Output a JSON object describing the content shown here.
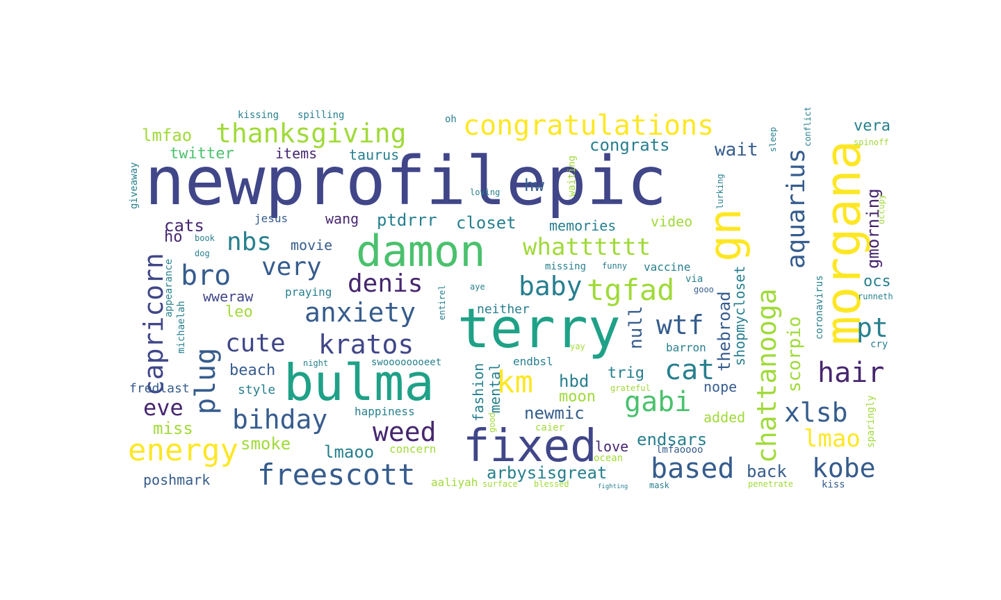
{
  "palette": {
    "purple": "#46266f",
    "indigo": "#404688",
    "blue": "#365c8d",
    "teal": "#277f8e",
    "teal2": "#1fa187",
    "green": "#4ac16d",
    "lime": "#a0da39",
    "yellow": "#fde725"
  },
  "words": [
    {
      "text": "newprofilepic",
      "color": "indigo"
    },
    {
      "text": "terry",
      "color": "teal2"
    },
    {
      "text": "bulma",
      "color": "teal2"
    },
    {
      "text": "morgana",
      "color": "yellow"
    },
    {
      "text": "damon",
      "color": "green"
    },
    {
      "text": "fixed",
      "color": "indigo"
    },
    {
      "text": "gn",
      "color": "yellow"
    },
    {
      "text": "congratulations",
      "color": "yellow"
    },
    {
      "text": "thanksgiving",
      "color": "lime"
    },
    {
      "text": "capricorn",
      "color": "indigo"
    },
    {
      "text": "anxiety",
      "color": "blue"
    },
    {
      "text": "kratos",
      "color": "indigo"
    },
    {
      "text": "chattanooga",
      "color": "lime"
    },
    {
      "text": "aquarius",
      "color": "blue"
    },
    {
      "text": "whatttttt",
      "color": "lime"
    },
    {
      "text": "km",
      "color": "yellow"
    },
    {
      "text": "tgfad",
      "color": "lime"
    },
    {
      "text": "freescott",
      "color": "blue"
    },
    {
      "text": "energy",
      "color": "yellow"
    },
    {
      "text": "bihday",
      "color": "blue"
    },
    {
      "text": "cute",
      "color": "indigo"
    },
    {
      "text": "denis",
      "color": "purple"
    },
    {
      "text": "very",
      "color": "blue"
    },
    {
      "text": "bro",
      "color": "blue"
    },
    {
      "text": "plug",
      "color": "blue"
    },
    {
      "text": "nbs",
      "color": "teal"
    },
    {
      "text": "baby",
      "color": "teal"
    },
    {
      "text": "wtf",
      "color": "blue"
    },
    {
      "text": "cat",
      "color": "teal"
    },
    {
      "text": "gabi",
      "color": "green"
    },
    {
      "text": "weed",
      "color": "purple"
    },
    {
      "text": "based",
      "color": "blue"
    },
    {
      "text": "kobe",
      "color": "blue"
    },
    {
      "text": "lmao",
      "color": "yellow"
    },
    {
      "text": "xlsb",
      "color": "blue"
    },
    {
      "text": "hair",
      "color": "purple"
    },
    {
      "text": "pt",
      "color": "teal"
    },
    {
      "text": "eve",
      "color": "purple"
    },
    {
      "text": "back",
      "color": "blue"
    },
    {
      "text": "arbysisgreat",
      "color": "teal"
    },
    {
      "text": "endsars",
      "color": "teal"
    },
    {
      "text": "smoke",
      "color": "lime"
    },
    {
      "text": "lmaoo",
      "color": "teal"
    },
    {
      "text": "poshmark",
      "color": "blue"
    },
    {
      "text": "miss",
      "color": "lime"
    },
    {
      "text": "fredlast",
      "color": "blue"
    },
    {
      "text": "style",
      "color": "teal"
    },
    {
      "text": "beach",
      "color": "blue"
    },
    {
      "text": "cats",
      "color": "purple"
    },
    {
      "text": "ho",
      "color": "purple"
    },
    {
      "text": "leo",
      "color": "lime"
    },
    {
      "text": "wweraw",
      "color": "indigo"
    },
    {
      "text": "lmfao",
      "color": "lime"
    },
    {
      "text": "twitter",
      "color": "green"
    },
    {
      "text": "items",
      "color": "purple"
    },
    {
      "text": "taurus",
      "color": "teal"
    },
    {
      "text": "congrats",
      "color": "teal"
    },
    {
      "text": "wait",
      "color": "blue"
    },
    {
      "text": "vera",
      "color": "teal"
    },
    {
      "text": "ptdrrr",
      "color": "teal"
    },
    {
      "text": "closet",
      "color": "teal"
    },
    {
      "text": "memories",
      "color": "teal"
    },
    {
      "text": "hw",
      "color": "blue"
    },
    {
      "text": "wang",
      "color": "purple"
    },
    {
      "text": "movie",
      "color": "blue"
    },
    {
      "text": "jesus",
      "color": "blue"
    },
    {
      "text": "video",
      "color": "lime"
    },
    {
      "text": "vaccine",
      "color": "teal"
    },
    {
      "text": "ocs",
      "color": "teal"
    },
    {
      "text": "gmorning",
      "color": "purple"
    },
    {
      "text": "scorpio",
      "color": "lime"
    },
    {
      "text": "thebroad",
      "color": "blue"
    },
    {
      "text": "shopmycloset",
      "color": "teal"
    },
    {
      "text": "null",
      "color": "blue"
    },
    {
      "text": "neither",
      "color": "teal"
    },
    {
      "text": "praying",
      "color": "teal"
    },
    {
      "text": "hbd",
      "color": "teal"
    },
    {
      "text": "moon",
      "color": "lime"
    },
    {
      "text": "trig",
      "color": "teal"
    },
    {
      "text": "nope",
      "color": "blue"
    },
    {
      "text": "newmic",
      "color": "blue"
    },
    {
      "text": "added",
      "color": "lime"
    },
    {
      "text": "love",
      "color": "purple"
    },
    {
      "text": "barron",
      "color": "teal"
    },
    {
      "text": "endbsl",
      "color": "teal"
    },
    {
      "text": "mental",
      "color": "teal"
    },
    {
      "text": "fashion",
      "color": "teal"
    },
    {
      "text": "happiness",
      "color": "teal"
    },
    {
      "text": "concern",
      "color": "lime"
    },
    {
      "text": "aaliyah",
      "color": "lime"
    },
    {
      "text": "swoooooooeet",
      "color": "teal"
    },
    {
      "text": "kissing",
      "color": "teal"
    },
    {
      "text": "spilling",
      "color": "teal"
    },
    {
      "text": "oh",
      "color": "teal"
    },
    {
      "text": "giveaway",
      "color": "teal"
    },
    {
      "text": "michaelah",
      "color": "teal"
    },
    {
      "text": "appearance",
      "color": "teal"
    },
    {
      "text": "coronavirus",
      "color": "teal"
    },
    {
      "text": "runneth",
      "color": "teal"
    },
    {
      "text": "cry",
      "color": "teal"
    },
    {
      "text": "spinoff",
      "color": "lime"
    },
    {
      "text": "occupy",
      "color": "lime"
    },
    {
      "text": "sparingly",
      "color": "lime"
    },
    {
      "text": "lmfaoooo",
      "color": "blue"
    },
    {
      "text": "caier",
      "color": "lime"
    },
    {
      "text": "ocean",
      "color": "lime"
    },
    {
      "text": "kiss",
      "color": "blue"
    },
    {
      "text": "waiting",
      "color": "lime"
    },
    {
      "text": "lurking",
      "color": "teal"
    },
    {
      "text": "missing",
      "color": "teal"
    },
    {
      "text": "funny",
      "color": "teal"
    },
    {
      "text": "loving",
      "color": "teal"
    },
    {
      "text": "entirel",
      "color": "teal"
    },
    {
      "text": "via",
      "color": "teal"
    },
    {
      "text": "gooo",
      "color": "blue"
    },
    {
      "text": "grateful",
      "color": "lime"
    },
    {
      "text": "night",
      "color": "teal"
    },
    {
      "text": "yay",
      "color": "lime"
    },
    {
      "text": "aye",
      "color": "teal"
    },
    {
      "text": "blessed",
      "color": "lime"
    },
    {
      "text": "surface",
      "color": "lime"
    },
    {
      "text": "penetrate",
      "color": "lime"
    },
    {
      "text": "conflict",
      "color": "teal"
    },
    {
      "text": "sleep",
      "color": "teal"
    },
    {
      "text": "book",
      "color": "teal"
    },
    {
      "text": "dog",
      "color": "teal"
    },
    {
      "text": "mask",
      "color": "teal"
    },
    {
      "text": "good",
      "color": "lime"
    },
    {
      "text": "fighting",
      "color": "teal"
    }
  ]
}
